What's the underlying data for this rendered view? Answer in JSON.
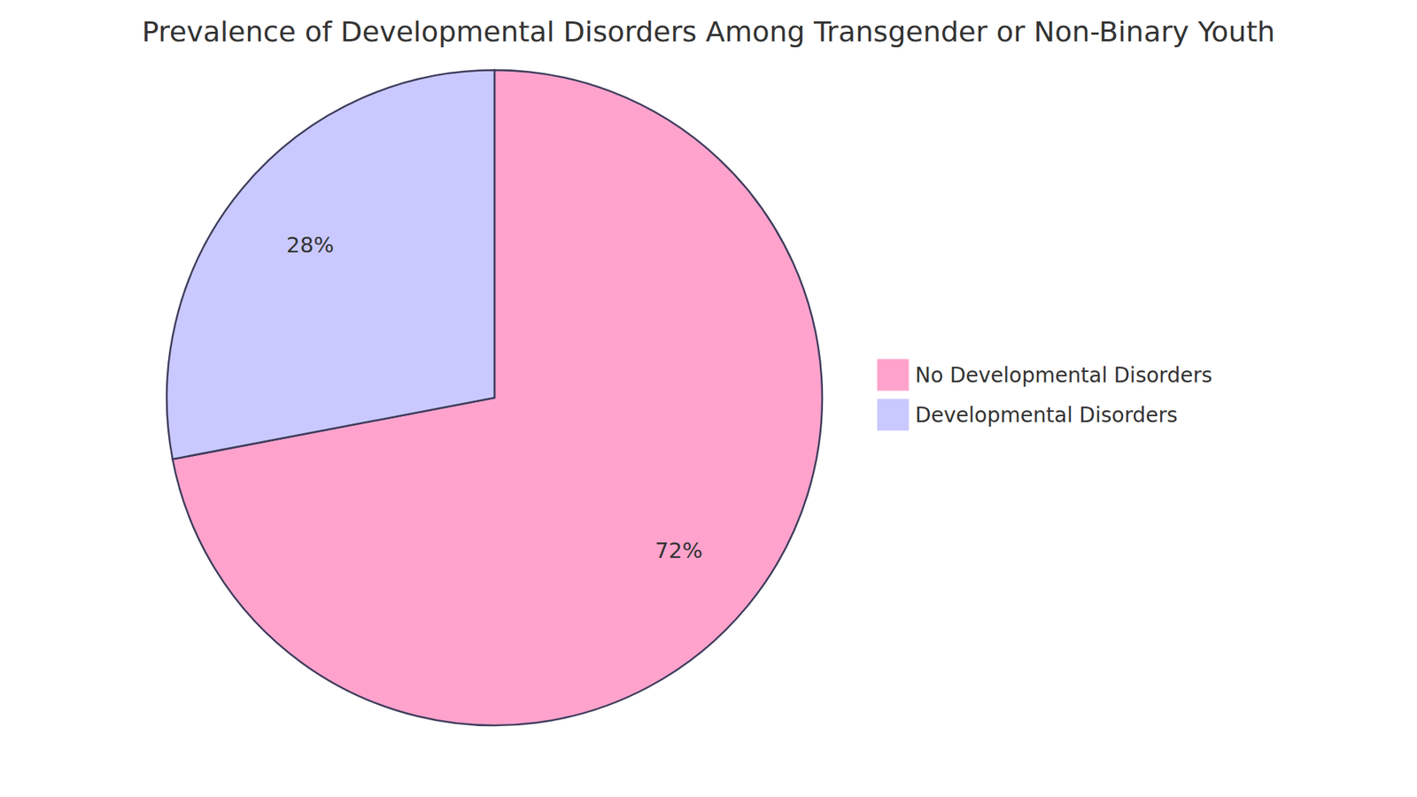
{
  "chart_data": {
    "type": "pie",
    "title": "Prevalence of Developmental Disorders Among Transgender or Non-Binary Youth",
    "categories": [
      "No Developmental Disorders",
      "Developmental Disorders"
    ],
    "values": [
      72,
      28
    ],
    "value_labels": [
      "72%",
      "28%"
    ],
    "colors": [
      "#ffa3cd",
      "#c9c9ff"
    ],
    "data_labels": true,
    "legend": "right"
  }
}
